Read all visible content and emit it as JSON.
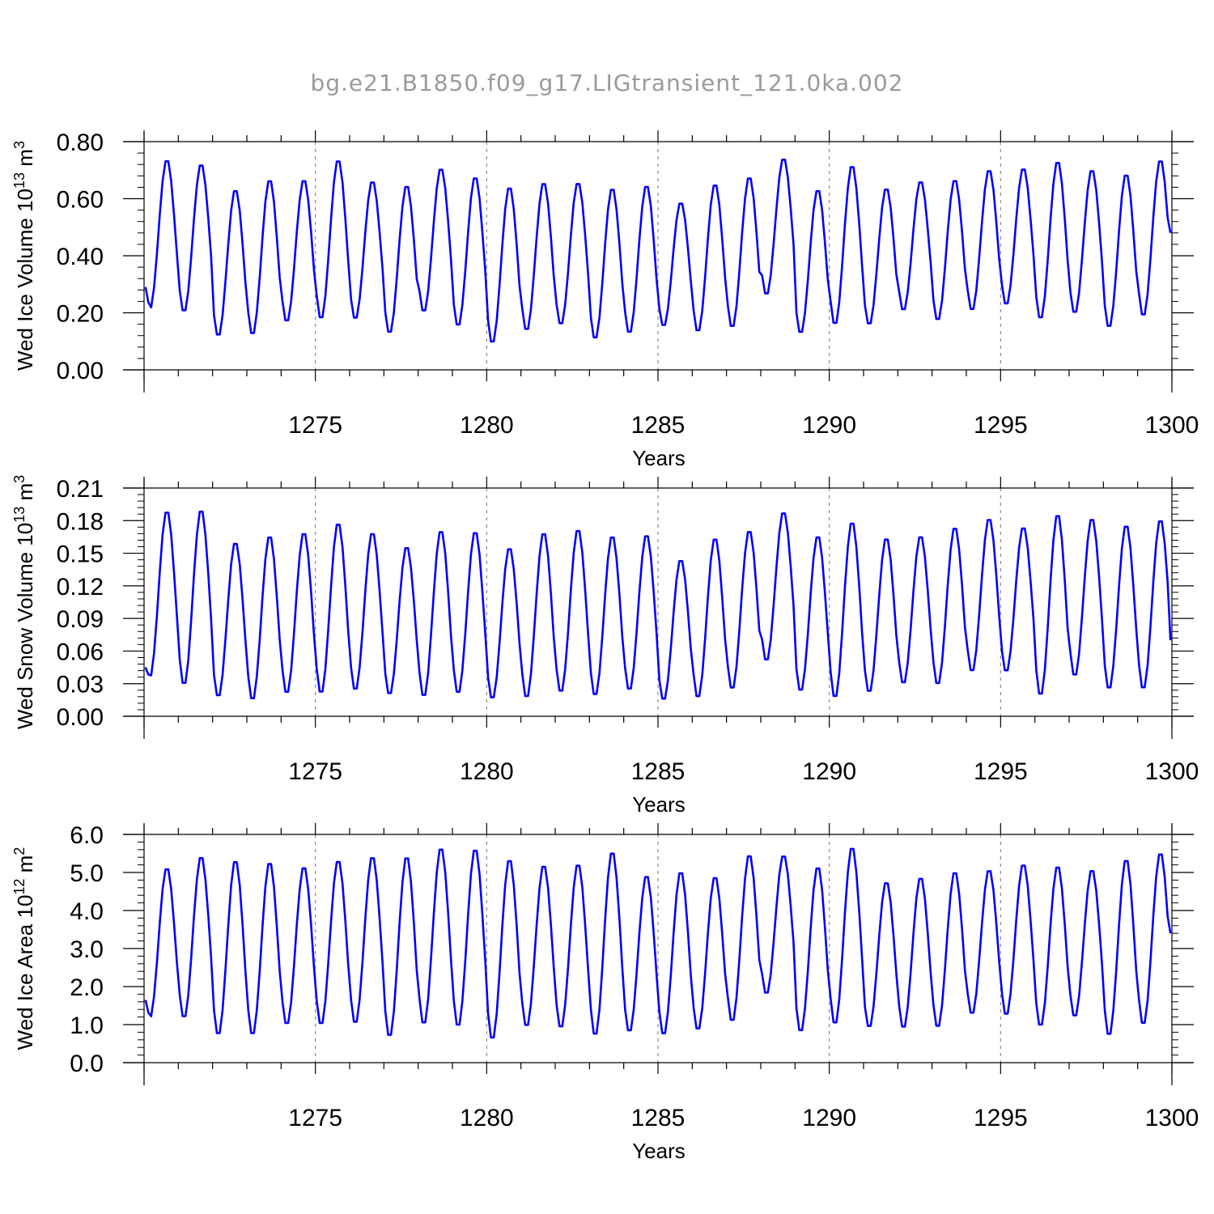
{
  "title": "bg.e21.B1850.f09_g17.LIGtransient_121.0ka.002",
  "chart_data": [
    {
      "type": "line",
      "x_start": 1270.0417,
      "x_step": 0.08333,
      "xlim": [
        1270,
        1300
      ],
      "xticks": [
        "1275",
        "1280",
        "1285",
        "1290",
        "1295",
        "1300"
      ],
      "xlabel": "Years",
      "ylabel_main": "Wed Ice Volume 10",
      "ylabel_exp": "13",
      "ylabel_unit": " m",
      "ylabel_unit_exp": "3",
      "ylim": [
        0,
        0.8
      ],
      "yticks": [
        "0.00",
        "0.20",
        "0.40",
        "0.60",
        "0.80"
      ],
      "grid": "dashed vertical at major x ticks",
      "series_color": "#0000ff",
      "minima": [
        0.21,
        0.2,
        0.115,
        0.12,
        0.165,
        0.175,
        0.175,
        0.125,
        0.2,
        0.15,
        0.09,
        0.135,
        0.155,
        0.105,
        0.125,
        0.15,
        0.13,
        0.145,
        0.26,
        0.125,
        0.155,
        0.155,
        0.205,
        0.17,
        0.205,
        0.225,
        0.175,
        0.195,
        0.145,
        0.185
      ],
      "maxima": [
        0.74,
        0.725,
        0.635,
        0.67,
        0.67,
        0.74,
        0.665,
        0.65,
        0.71,
        0.68,
        0.645,
        0.66,
        0.66,
        0.64,
        0.65,
        0.59,
        0.655,
        0.68,
        0.745,
        0.635,
        0.72,
        0.64,
        0.665,
        0.67,
        0.705,
        0.71,
        0.735,
        0.705,
        0.69,
        0.74
      ],
      "start_value": 0.29,
      "end_value": 0.48
    },
    {
      "type": "line",
      "x_start": 1270.0417,
      "x_step": 0.08333,
      "xlim": [
        1270,
        1300
      ],
      "xticks": [
        "1275",
        "1280",
        "1285",
        "1290",
        "1295",
        "1300"
      ],
      "xlabel": "Years",
      "ylabel_main": "Wed Snow Volume 10",
      "ylabel_exp": "13",
      "ylabel_unit": " m",
      "ylabel_unit_exp": "3",
      "ylim": [
        0,
        0.21
      ],
      "yticks": [
        "0.00",
        "0.03",
        "0.06",
        "0.09",
        "0.12",
        "0.15",
        "0.18",
        "0.21"
      ],
      "grid": "dashed vertical at major x ticks",
      "series_color": "#0000ff",
      "minima": [
        0.035,
        0.028,
        0.017,
        0.014,
        0.02,
        0.02,
        0.023,
        0.019,
        0.017,
        0.02,
        0.015,
        0.016,
        0.021,
        0.018,
        0.023,
        0.014,
        0.016,
        0.024,
        0.05,
        0.022,
        0.016,
        0.021,
        0.029,
        0.028,
        0.04,
        0.04,
        0.018,
        0.036,
        0.024,
        0.024
      ],
      "maxima": [
        0.19,
        0.191,
        0.161,
        0.167,
        0.17,
        0.179,
        0.17,
        0.157,
        0.172,
        0.171,
        0.156,
        0.17,
        0.173,
        0.167,
        0.168,
        0.145,
        0.165,
        0.172,
        0.189,
        0.167,
        0.18,
        0.165,
        0.167,
        0.175,
        0.183,
        0.175,
        0.187,
        0.183,
        0.177,
        0.182
      ],
      "start_value": 0.045,
      "end_value": 0.07
    },
    {
      "type": "line",
      "x_start": 1270.0417,
      "x_step": 0.08333,
      "xlim": [
        1270,
        1300
      ],
      "xticks": [
        "1275",
        "1280",
        "1285",
        "1290",
        "1295",
        "1300"
      ],
      "xlabel": "Years",
      "ylabel_main": "Wed Ice Area 10",
      "ylabel_exp": "12",
      "ylabel_unit": " m",
      "ylabel_unit_exp": "2",
      "ylim": [
        0,
        6
      ],
      "yticks": [
        "0.0",
        "1.0",
        "2.0",
        "3.0",
        "4.0",
        "5.0",
        "6.0"
      ],
      "grid": "dashed vertical at major x ticks",
      "series_color": "#0000ff",
      "minima": [
        1.15,
        1.15,
        0.7,
        0.7,
        0.97,
        0.97,
        1.0,
        0.65,
        0.98,
        0.92,
        0.58,
        0.92,
        0.88,
        0.68,
        0.78,
        0.7,
        0.83,
        1.05,
        1.78,
        0.78,
        0.98,
        0.9,
        0.88,
        0.9,
        1.25,
        1.22,
        0.93,
        1.18,
        0.68,
        0.97
      ],
      "maxima": [
        5.15,
        5.45,
        5.35,
        5.3,
        5.18,
        5.35,
        5.45,
        5.45,
        5.68,
        5.65,
        5.38,
        5.22,
        5.25,
        5.58,
        4.95,
        5.05,
        4.92,
        5.5,
        5.48,
        5.18,
        5.7,
        4.78,
        4.9,
        5.05,
        5.1,
        5.25,
        5.2,
        5.1,
        5.38,
        5.55
      ],
      "start_value": 1.65,
      "end_value": 3.4
    }
  ]
}
